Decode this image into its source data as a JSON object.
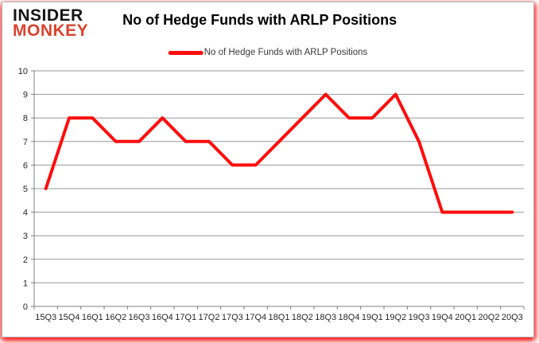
{
  "logo": {
    "line1": "INSIDER",
    "line2": "MONKEY",
    "line1_color": "#141414",
    "line2_color": "#d9432c"
  },
  "header": {
    "title": "No of Hedge Funds with ARLP Positions"
  },
  "legend": {
    "label": "No of Hedge Funds with ARLP Positions",
    "marker_color": "#fd0d0d",
    "position": "top-center"
  },
  "chart_data": {
    "type": "line",
    "title": "No of Hedge Funds with ARLP Positions",
    "xlabel": "",
    "ylabel": "",
    "categories": [
      "15Q3",
      "15Q4",
      "16Q1",
      "16Q2",
      "16Q3",
      "16Q4",
      "17Q1",
      "17Q2",
      "17Q3",
      "17Q4",
      "18Q1",
      "18Q2",
      "18Q3",
      "18Q4",
      "19Q1",
      "19Q2",
      "19Q3",
      "19Q4",
      "20Q1",
      "20Q2",
      "20Q3"
    ],
    "series": [
      {
        "name": "No of Hedge Funds with ARLP Positions",
        "values": [
          5,
          8,
          8,
          7,
          7,
          8,
          7,
          7,
          6,
          6,
          7,
          8,
          9,
          8,
          8,
          9,
          7,
          4,
          4,
          4,
          4
        ]
      }
    ],
    "ylim": [
      0,
      10
    ],
    "ytick_step": 1,
    "grid": true,
    "legend_position": "top",
    "line_color": "#fd0d0d",
    "line_width": 4,
    "gridline_color": "#979797",
    "axis_color": "#7f7f7f",
    "axis_text_color": "#262626",
    "background_color": "#ffffff",
    "border_glow_color": "#fc1010"
  }
}
